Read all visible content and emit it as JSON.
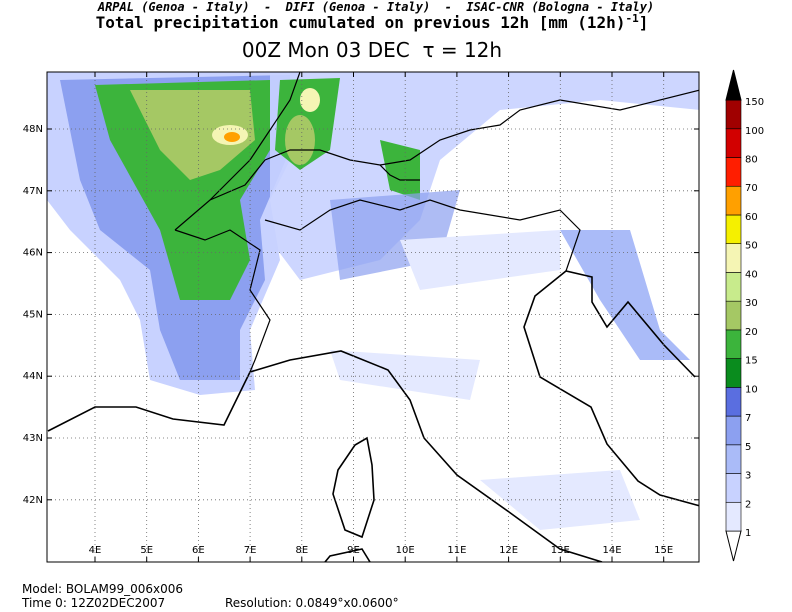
{
  "header": {
    "credits": "ARPAL (Genoa - Italy)  -  DIFI (Genoa - Italy)  -  ISAC-CNR (Bologna - Italy)",
    "title": "Total precipitation cumulated on previous 12h [mm (12h)",
    "title_superscript": "-1",
    "title_end": "]",
    "subtitle": "00Z Mon 03 DEC  τ = 12h"
  },
  "map": {
    "longitude_labels": [
      "4E",
      "5E",
      "6E",
      "7E",
      "8E",
      "9E",
      "10E",
      "11E",
      "12E",
      "13E",
      "14E",
      "15E"
    ],
    "latitude_labels": [
      "48N",
      "47N",
      "46N",
      "45N",
      "44N",
      "43N",
      "42N"
    ]
  },
  "legend": {
    "levels": [
      1,
      2,
      3,
      5,
      7,
      10,
      15,
      20,
      30,
      40,
      50,
      60,
      70,
      80,
      100,
      150
    ],
    "colors": [
      "#ffffff",
      "#e4e9ff",
      "#c8d2ff",
      "#aabbf8",
      "#8ca0f0",
      "#5a6ee0",
      "#0a8c1e",
      "#3cb43c",
      "#a5c864",
      "#c8eb8c",
      "#f5f5b4",
      "#f5f000",
      "#ffa000",
      "#ff1e00",
      "#d20000",
      "#a00000",
      "#000000"
    ]
  },
  "footer": {
    "model": "Model: BOLAM99_006x006",
    "time": "Time 0: 12Z02DEC2007",
    "resolution": "Resolution: 0.0849°x0.0600°"
  }
}
